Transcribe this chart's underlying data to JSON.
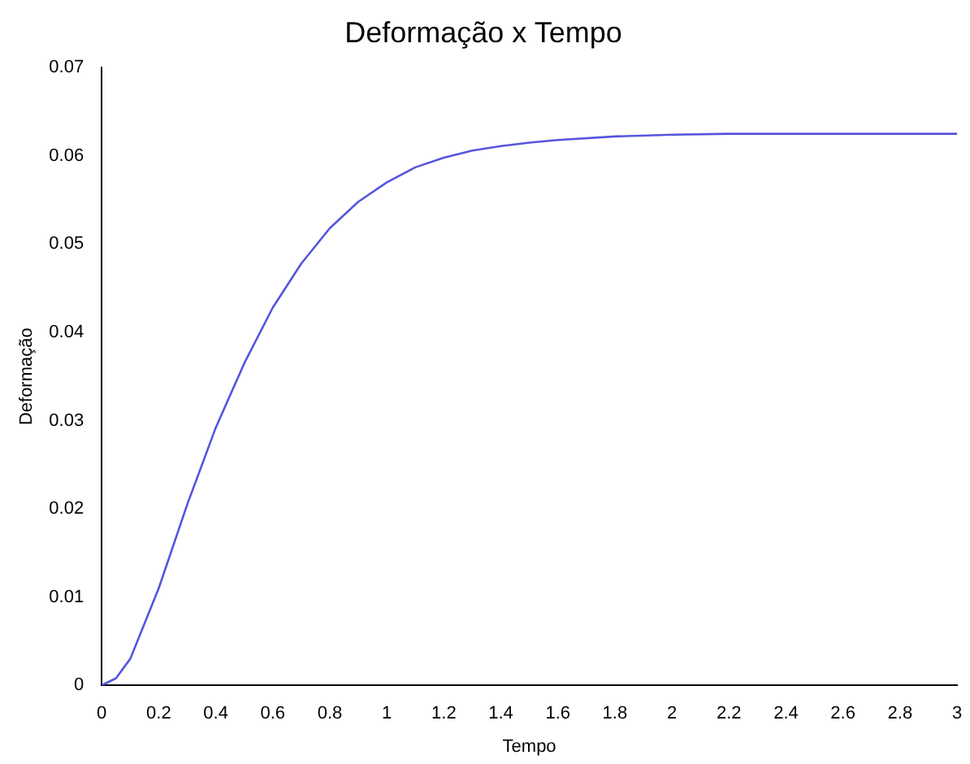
{
  "chart_data": {
    "type": "line",
    "title": "Deformação x Tempo",
    "xlabel": "Tempo",
    "ylabel": "Deformação",
    "x": [
      0,
      0.05,
      0.1,
      0.15,
      0.2,
      0.3,
      0.4,
      0.5,
      0.6,
      0.7,
      0.8,
      0.9,
      1.0,
      1.1,
      1.2,
      1.3,
      1.4,
      1.5,
      1.6,
      1.8,
      2.0,
      2.2,
      2.6,
      3.0
    ],
    "series": [
      {
        "color": "#5555dd",
        "values": [
          0,
          0.0008,
          0.003,
          0.007,
          0.011,
          0.0205,
          0.0292,
          0.0365,
          0.0428,
          0.0478,
          0.0518,
          0.0548,
          0.057,
          0.0587,
          0.0598,
          0.0606,
          0.0611,
          0.0615,
          0.0618,
          0.0622,
          0.0624,
          0.0625,
          0.0625,
          0.0625
        ]
      }
    ],
    "xlim": [
      0,
      3
    ],
    "xticks": [
      0,
      0.2,
      0.4,
      0.6,
      0.8,
      1,
      1.2,
      1.4,
      1.6,
      1.8,
      2,
      2.2,
      2.4,
      2.6,
      2.8,
      3
    ],
    "ylim": [
      0,
      0.07
    ],
    "yticks": [
      0,
      0.01,
      0.02,
      0.03,
      0.04,
      0.05,
      0.06,
      0.07
    ],
    "grid": false,
    "legend": false,
    "marker": "none",
    "line_style": "solid"
  }
}
